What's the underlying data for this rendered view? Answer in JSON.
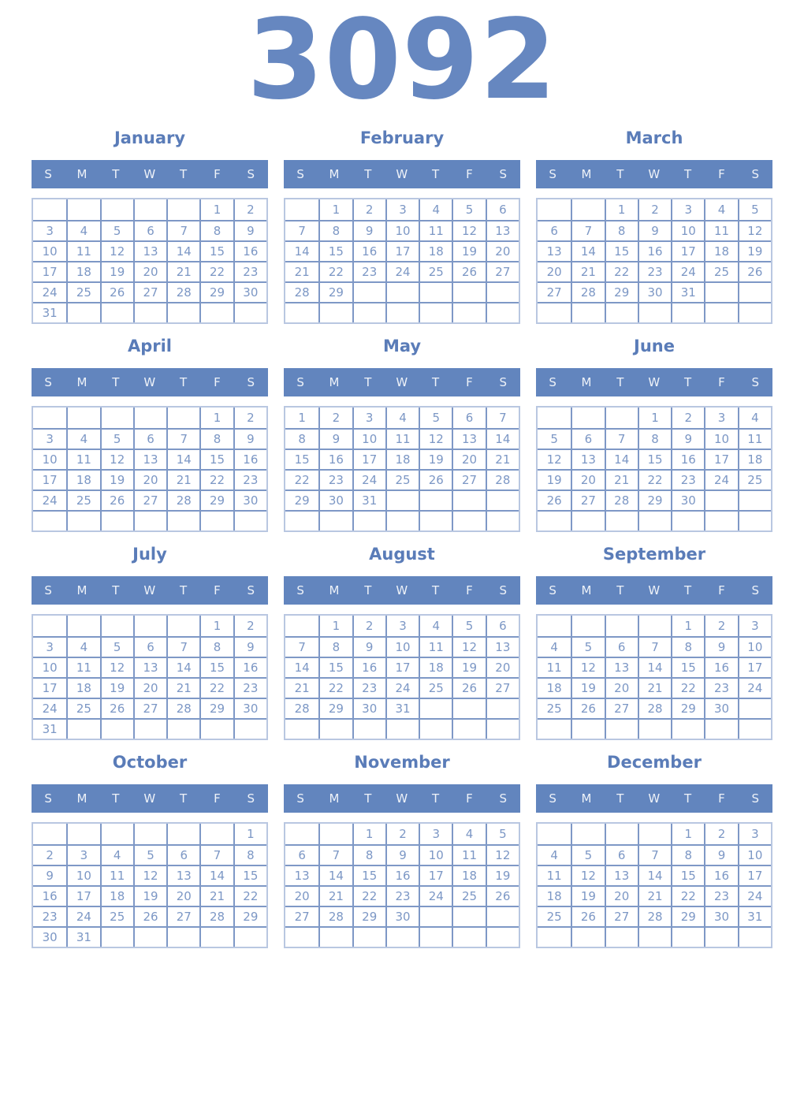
{
  "year": "3092",
  "weekdays": [
    "S",
    "M",
    "T",
    "W",
    "T",
    "F",
    "S"
  ],
  "colors": {
    "header_bg": "#6285be",
    "header_text": "#eef2f8",
    "title": "#5a7cb8",
    "date": "#7c97c5",
    "border_inner": "#7e98c6",
    "border_outer": "#b9c7e1",
    "year": "#6687c0"
  },
  "months": [
    {
      "name": "January",
      "weeks": [
        [
          "",
          "",
          "",
          "",
          "",
          "1",
          "2"
        ],
        [
          "3",
          "4",
          "5",
          "6",
          "7",
          "8",
          "9"
        ],
        [
          "10",
          "11",
          "12",
          "13",
          "14",
          "15",
          "16"
        ],
        [
          "17",
          "18",
          "19",
          "20",
          "21",
          "22",
          "23"
        ],
        [
          "24",
          "25",
          "26",
          "27",
          "28",
          "29",
          "30"
        ],
        [
          "31",
          "",
          "",
          "",
          "",
          "",
          ""
        ]
      ]
    },
    {
      "name": "February",
      "weeks": [
        [
          "",
          "1",
          "2",
          "3",
          "4",
          "5",
          "6"
        ],
        [
          "7",
          "8",
          "9",
          "10",
          "11",
          "12",
          "13"
        ],
        [
          "14",
          "15",
          "16",
          "17",
          "18",
          "19",
          "20"
        ],
        [
          "21",
          "22",
          "23",
          "24",
          "25",
          "26",
          "27"
        ],
        [
          "28",
          "29",
          "",
          "",
          "",
          "",
          ""
        ],
        [
          "",
          "",
          "",
          "",
          "",
          "",
          ""
        ]
      ]
    },
    {
      "name": "March",
      "weeks": [
        [
          "",
          "",
          "1",
          "2",
          "3",
          "4",
          "5"
        ],
        [
          "6",
          "7",
          "8",
          "9",
          "10",
          "11",
          "12"
        ],
        [
          "13",
          "14",
          "15",
          "16",
          "17",
          "18",
          "19"
        ],
        [
          "20",
          "21",
          "22",
          "23",
          "24",
          "25",
          "26"
        ],
        [
          "27",
          "28",
          "29",
          "30",
          "31",
          "",
          ""
        ],
        [
          "",
          "",
          "",
          "",
          "",
          "",
          ""
        ]
      ]
    },
    {
      "name": "April",
      "weeks": [
        [
          "",
          "",
          "",
          "",
          "",
          "1",
          "2"
        ],
        [
          "3",
          "4",
          "5",
          "6",
          "7",
          "8",
          "9"
        ],
        [
          "10",
          "11",
          "12",
          "13",
          "14",
          "15",
          "16"
        ],
        [
          "17",
          "18",
          "19",
          "20",
          "21",
          "22",
          "23"
        ],
        [
          "24",
          "25",
          "26",
          "27",
          "28",
          "29",
          "30"
        ],
        [
          "",
          "",
          "",
          "",
          "",
          "",
          ""
        ]
      ]
    },
    {
      "name": "May",
      "weeks": [
        [
          "1",
          "2",
          "3",
          "4",
          "5",
          "6",
          "7"
        ],
        [
          "8",
          "9",
          "10",
          "11",
          "12",
          "13",
          "14"
        ],
        [
          "15",
          "16",
          "17",
          "18",
          "19",
          "20",
          "21"
        ],
        [
          "22",
          "23",
          "24",
          "25",
          "26",
          "27",
          "28"
        ],
        [
          "29",
          "30",
          "31",
          "",
          "",
          "",
          ""
        ],
        [
          "",
          "",
          "",
          "",
          "",
          "",
          ""
        ]
      ]
    },
    {
      "name": "June",
      "weeks": [
        [
          "",
          "",
          "",
          "1",
          "2",
          "3",
          "4"
        ],
        [
          "5",
          "6",
          "7",
          "8",
          "9",
          "10",
          "11"
        ],
        [
          "12",
          "13",
          "14",
          "15",
          "16",
          "17",
          "18"
        ],
        [
          "19",
          "20",
          "21",
          "22",
          "23",
          "24",
          "25"
        ],
        [
          "26",
          "27",
          "28",
          "29",
          "30",
          "",
          ""
        ],
        [
          "",
          "",
          "",
          "",
          "",
          "",
          ""
        ]
      ]
    },
    {
      "name": "July",
      "weeks": [
        [
          "",
          "",
          "",
          "",
          "",
          "1",
          "2"
        ],
        [
          "3",
          "4",
          "5",
          "6",
          "7",
          "8",
          "9"
        ],
        [
          "10",
          "11",
          "12",
          "13",
          "14",
          "15",
          "16"
        ],
        [
          "17",
          "18",
          "19",
          "20",
          "21",
          "22",
          "23"
        ],
        [
          "24",
          "25",
          "26",
          "27",
          "28",
          "29",
          "30"
        ],
        [
          "31",
          "",
          "",
          "",
          "",
          "",
          ""
        ]
      ]
    },
    {
      "name": "August",
      "weeks": [
        [
          "",
          "1",
          "2",
          "3",
          "4",
          "5",
          "6"
        ],
        [
          "7",
          "8",
          "9",
          "10",
          "11",
          "12",
          "13"
        ],
        [
          "14",
          "15",
          "16",
          "17",
          "18",
          "19",
          "20"
        ],
        [
          "21",
          "22",
          "23",
          "24",
          "25",
          "26",
          "27"
        ],
        [
          "28",
          "29",
          "30",
          "31",
          "",
          "",
          ""
        ],
        [
          "",
          "",
          "",
          "",
          "",
          "",
          ""
        ]
      ]
    },
    {
      "name": "September",
      "weeks": [
        [
          "",
          "",
          "",
          "",
          "1",
          "2",
          "3"
        ],
        [
          "4",
          "5",
          "6",
          "7",
          "8",
          "9",
          "10"
        ],
        [
          "11",
          "12",
          "13",
          "14",
          "15",
          "16",
          "17"
        ],
        [
          "18",
          "19",
          "20",
          "21",
          "22",
          "23",
          "24"
        ],
        [
          "25",
          "26",
          "27",
          "28",
          "29",
          "30",
          ""
        ],
        [
          "",
          "",
          "",
          "",
          "",
          "",
          ""
        ]
      ]
    },
    {
      "name": "October",
      "weeks": [
        [
          "",
          "",
          "",
          "",
          "",
          "",
          "1"
        ],
        [
          "2",
          "3",
          "4",
          "5",
          "6",
          "7",
          "8"
        ],
        [
          "9",
          "10",
          "11",
          "12",
          "13",
          "14",
          "15"
        ],
        [
          "16",
          "17",
          "18",
          "19",
          "20",
          "21",
          "22"
        ],
        [
          "23",
          "24",
          "25",
          "26",
          "27",
          "28",
          "29"
        ],
        [
          "30",
          "31",
          "",
          "",
          "",
          "",
          ""
        ]
      ]
    },
    {
      "name": "November",
      "weeks": [
        [
          "",
          "",
          "1",
          "2",
          "3",
          "4",
          "5"
        ],
        [
          "6",
          "7",
          "8",
          "9",
          "10",
          "11",
          "12"
        ],
        [
          "13",
          "14",
          "15",
          "16",
          "17",
          "18",
          "19"
        ],
        [
          "20",
          "21",
          "22",
          "23",
          "24",
          "25",
          "26"
        ],
        [
          "27",
          "28",
          "29",
          "30",
          "",
          "",
          ""
        ],
        [
          "",
          "",
          "",
          "",
          "",
          "",
          ""
        ]
      ]
    },
    {
      "name": "December",
      "weeks": [
        [
          "",
          "",
          "",
          "",
          "1",
          "2",
          "3"
        ],
        [
          "4",
          "5",
          "6",
          "7",
          "8",
          "9",
          "10"
        ],
        [
          "11",
          "12",
          "13",
          "14",
          "15",
          "16",
          "17"
        ],
        [
          "18",
          "19",
          "20",
          "21",
          "22",
          "23",
          "24"
        ],
        [
          "25",
          "26",
          "27",
          "28",
          "29",
          "30",
          "31"
        ],
        [
          "",
          "",
          "",
          "",
          "",
          "",
          ""
        ]
      ]
    }
  ]
}
